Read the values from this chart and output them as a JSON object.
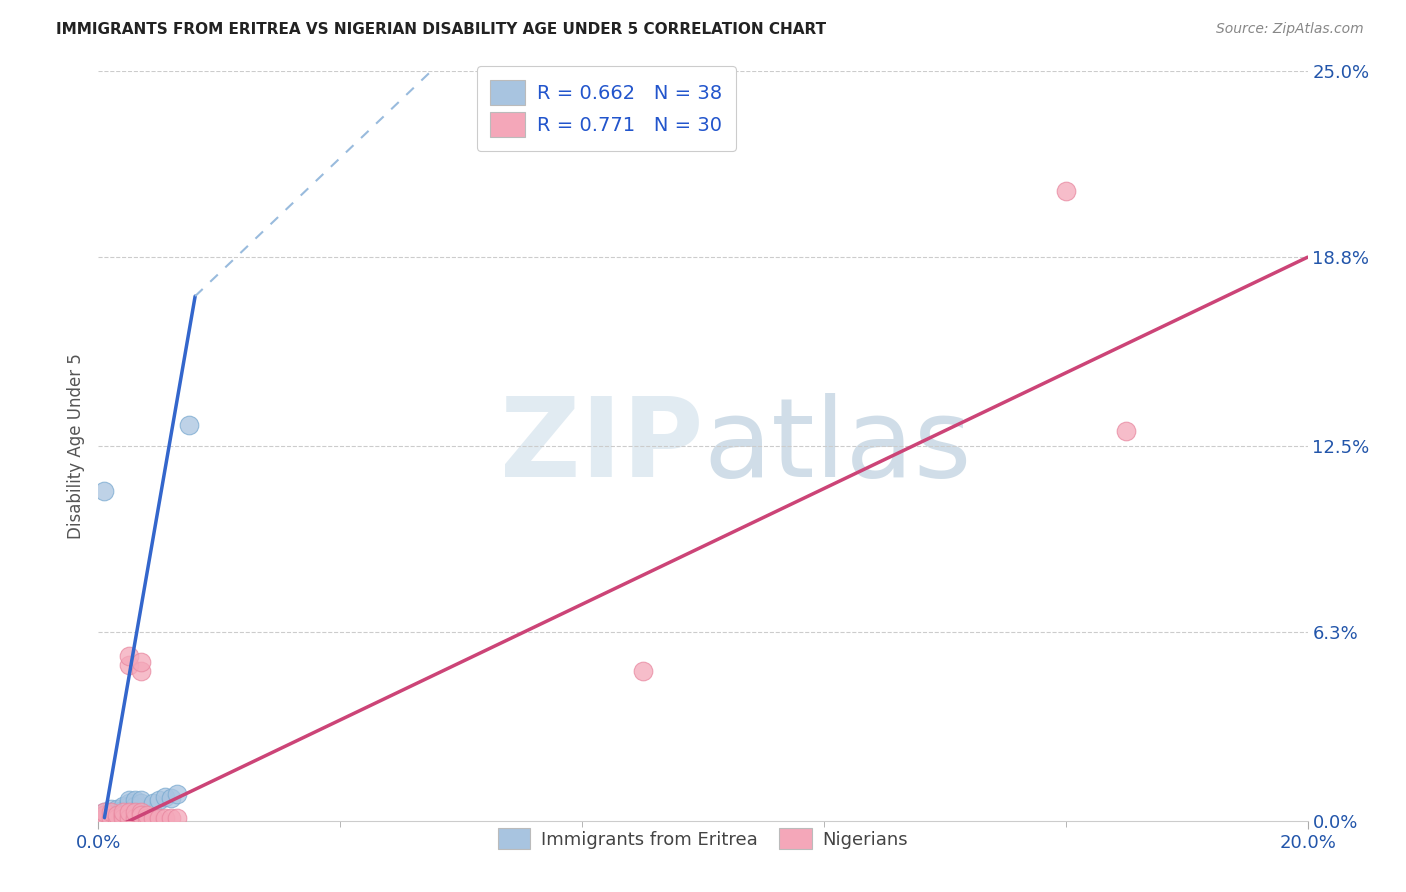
{
  "title": "IMMIGRANTS FROM ERITREA VS NIGERIAN DISABILITY AGE UNDER 5 CORRELATION CHART",
  "source": "Source: ZipAtlas.com",
  "ylabel": "Disability Age Under 5",
  "xlim": [
    0.0,
    0.2
  ],
  "ylim": [
    0.0,
    0.25
  ],
  "xtick_labels": [
    "0.0%",
    "20.0%"
  ],
  "ytick_labels": [
    "0.0%",
    "6.3%",
    "12.5%",
    "18.8%",
    "25.0%"
  ],
  "ytick_values": [
    0.0,
    0.063,
    0.125,
    0.188,
    0.25
  ],
  "xtick_values": [
    0.0,
    0.2
  ],
  "xtick_minor": [
    0.04,
    0.08,
    0.12,
    0.16
  ],
  "grid_yticks": [
    0.063,
    0.125,
    0.188,
    0.25
  ],
  "blue_R": 0.662,
  "blue_N": 38,
  "pink_R": 0.771,
  "pink_N": 30,
  "blue_color": "#a8c4e0",
  "blue_edge_color": "#7aaad0",
  "pink_color": "#f4a7b9",
  "pink_edge_color": "#e888a0",
  "blue_line_color": "#3366cc",
  "pink_line_color": "#cc4477",
  "blue_dashed_color": "#99bbdd",
  "watermark_color": "#dce8f0",
  "blue_points": [
    [
      0.001,
      0.001
    ],
    [
      0.001,
      0.002
    ],
    [
      0.001,
      0.003
    ],
    [
      0.001,
      0.0015
    ],
    [
      0.002,
      0.001
    ],
    [
      0.002,
      0.002
    ],
    [
      0.002,
      0.003
    ],
    [
      0.002,
      0.004
    ],
    [
      0.003,
      0.001
    ],
    [
      0.003,
      0.002
    ],
    [
      0.003,
      0.003
    ],
    [
      0.003,
      0.004
    ],
    [
      0.004,
      0.002
    ],
    [
      0.004,
      0.003
    ],
    [
      0.004,
      0.0035
    ],
    [
      0.004,
      0.005
    ],
    [
      0.005,
      0.001
    ],
    [
      0.005,
      0.005
    ],
    [
      0.005,
      0.006
    ],
    [
      0.005,
      0.007
    ],
    [
      0.006,
      0.005
    ],
    [
      0.006,
      0.007
    ],
    [
      0.007,
      0.006
    ],
    [
      0.007,
      0.007
    ],
    [
      0.008,
      0.001
    ],
    [
      0.009,
      0.006
    ],
    [
      0.01,
      0.007
    ],
    [
      0.011,
      0.008
    ],
    [
      0.012,
      0.0075
    ],
    [
      0.013,
      0.009
    ],
    [
      0.001,
      0.001
    ],
    [
      0.001,
      0.002
    ],
    [
      0.002,
      0.001
    ],
    [
      0.002,
      0.002
    ],
    [
      0.003,
      0.001
    ],
    [
      0.001,
      0.11
    ],
    [
      0.015,
      0.132
    ],
    [
      0.008,
      0.001
    ]
  ],
  "pink_points": [
    [
      0.001,
      0.001
    ],
    [
      0.001,
      0.002
    ],
    [
      0.001,
      0.003
    ],
    [
      0.002,
      0.001
    ],
    [
      0.002,
      0.003
    ],
    [
      0.003,
      0.001
    ],
    [
      0.003,
      0.002
    ],
    [
      0.004,
      0.002
    ],
    [
      0.004,
      0.001
    ],
    [
      0.004,
      0.003
    ],
    [
      0.005,
      0.001
    ],
    [
      0.005,
      0.003
    ],
    [
      0.006,
      0.001
    ],
    [
      0.006,
      0.003
    ],
    [
      0.007,
      0.003
    ],
    [
      0.007,
      0.002
    ],
    [
      0.008,
      0.001
    ],
    [
      0.008,
      0.002
    ],
    [
      0.009,
      0.001
    ],
    [
      0.01,
      0.001
    ],
    [
      0.011,
      0.001
    ],
    [
      0.012,
      0.001
    ],
    [
      0.013,
      0.001
    ],
    [
      0.005,
      0.052
    ],
    [
      0.005,
      0.055
    ],
    [
      0.007,
      0.05
    ],
    [
      0.007,
      0.053
    ],
    [
      0.09,
      0.05
    ],
    [
      0.16,
      0.21
    ],
    [
      0.17,
      0.13
    ]
  ],
  "blue_line_solid": [
    [
      0.001,
      0.001
    ],
    [
      0.016,
      0.175
    ]
  ],
  "blue_line_dashed": [
    [
      0.016,
      0.175
    ],
    [
      0.055,
      0.25
    ]
  ],
  "pink_line": [
    [
      0.0,
      -0.005
    ],
    [
      0.2,
      0.188
    ]
  ]
}
